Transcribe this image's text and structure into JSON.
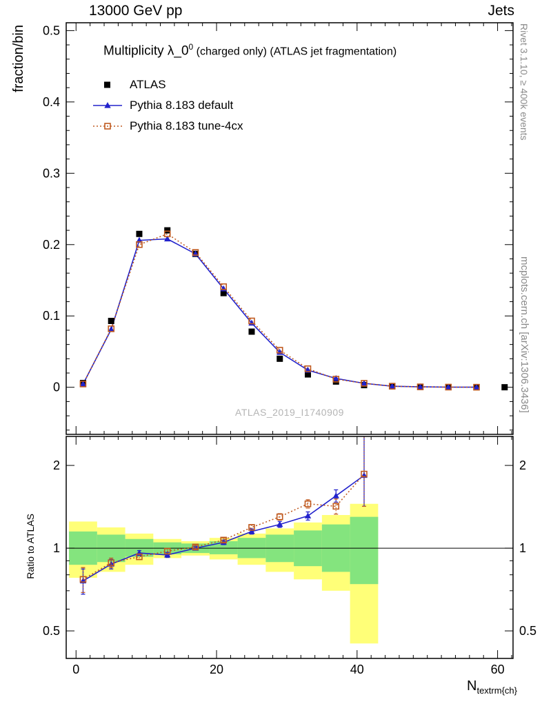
{
  "header": {
    "left": "13000 GeV pp",
    "right": "Jets"
  },
  "side_notes": {
    "top_right": "Rivet 3.1.10, ≥ 400k events",
    "bottom_right": "mcplots.cern.ch [arXiv:1306.3436]"
  },
  "main_panel": {
    "ylabel": "fraction/bin",
    "title": {
      "prefix": "Multiplicity λ_0",
      "superscript": "0",
      "suffix": " (charged only) (ATLAS jet fragmentation)"
    },
    "watermark": "ATLAS_2019_I1740909",
    "legend": [
      {
        "label": "ATLAS",
        "marker": "filled-square",
        "line": "none"
      },
      {
        "label": "Pythia 8.183 default",
        "marker": "filled-triangle",
        "line": "solid"
      },
      {
        "label": "Pythia 8.183 tune-4cx",
        "marker": "open-square",
        "line": "dotted"
      }
    ]
  },
  "ratio_panel": {
    "ylabel": "Ratio to ATLAS"
  },
  "xaxis": {
    "label_base": "N",
    "label_sub": "textrm{ch}"
  },
  "colors": {
    "atlas": "#000000",
    "pythia_default": "#2222cc",
    "pythia_4cx": "#c05a20",
    "band_green": "#84e47e",
    "band_yellow": "#ffff78",
    "watermark": "#b4b4b4",
    "side_note": "#8a8a8a"
  },
  "chart_data": [
    {
      "type": "line",
      "title": "Multiplicity λ_0^0 (charged only) (ATLAS jet fragmentation)",
      "xlabel": "N_textrm{ch}",
      "ylabel": "fraction/bin",
      "legend_position": "top-left",
      "grid": false,
      "xlim": [
        -1.4,
        62.2
      ],
      "ylim": [
        -0.066,
        0.511
      ],
      "xticks": {
        "values": [
          0,
          20,
          40,
          60
        ],
        "labels": [
          "0",
          "20",
          "40",
          "60"
        ]
      },
      "yticks": {
        "values": [
          0,
          0.1,
          0.2,
          0.3,
          0.4,
          0.5
        ],
        "labels": [
          "0",
          "0.1",
          "0.2",
          "0.3",
          "0.4",
          "0.5"
        ]
      },
      "x": [
        1,
        5,
        9,
        13,
        17,
        21,
        25,
        29,
        33,
        37,
        41,
        45,
        49,
        53,
        57,
        61
      ],
      "series": [
        {
          "name": "ATLAS",
          "values": [
            0.006,
            0.093,
            0.215,
            0.22,
            0.187,
            0.132,
            0.078,
            0.04,
            0.018,
            0.008,
            0.003,
            0.0012,
            0.0005,
            0.0002,
            0.0001,
            5e-05
          ]
        },
        {
          "name": "Pythia 8.183 default",
          "values": [
            0.0046,
            0.081,
            0.206,
            0.208,
            0.187,
            0.138,
            0.09,
            0.049,
            0.024,
            0.0124,
            0.0055,
            0.0015,
            0.0006,
            0.00025,
            0.0001,
            null
          ]
        },
        {
          "name": "Pythia 8.183 tune-4cx",
          "values": [
            0.0046,
            0.082,
            0.2,
            0.215,
            0.189,
            0.141,
            0.093,
            0.052,
            0.026,
            0.0114,
            0.0056,
            0.0015,
            0.0006,
            0.00025,
            0.0001,
            null
          ]
        }
      ]
    },
    {
      "type": "line",
      "title": "Ratio to ATLAS",
      "ylabel": "Ratio to ATLAS",
      "yscale": "log",
      "grid": false,
      "xlim": [
        -1.4,
        62.2
      ],
      "ylim": [
        0.397,
        2.55
      ],
      "yticks": {
        "values": [
          0.5,
          1,
          2
        ],
        "labels": [
          "0.5",
          "1",
          "2"
        ]
      },
      "yticks_minor": [
        0.6,
        0.7,
        0.8,
        0.9
      ],
      "reference_line": 1,
      "x": [
        1,
        5,
        9,
        13,
        17,
        21,
        25,
        29,
        33,
        37,
        41
      ],
      "series": [
        {
          "name": "Pythia 8.183 default",
          "values": [
            0.76,
            0.875,
            0.96,
            0.945,
            1.0,
            1.05,
            1.15,
            1.22,
            1.31,
            1.55,
            1.84
          ],
          "err_lo": [
            0.08,
            0.035,
            0.02,
            0.02,
            0.015,
            0.02,
            0.025,
            0.03,
            0.045,
            0.08,
            0.42
          ],
          "err_hi": [
            0.08,
            0.035,
            0.02,
            0.02,
            0.015,
            0.02,
            0.025,
            0.03,
            0.045,
            0.08,
            0.9
          ]
        },
        {
          "name": "Pythia 8.183 tune-4cx",
          "values": [
            0.77,
            0.885,
            0.93,
            0.975,
            1.01,
            1.07,
            1.19,
            1.3,
            1.45,
            1.42,
            1.86
          ],
          "err_lo": [
            0.08,
            0.035,
            0.02,
            0.02,
            0.015,
            0.02,
            0.025,
            0.035,
            0.05,
            0.09,
            0.44
          ],
          "err_hi": [
            0.08,
            0.035,
            0.02,
            0.02,
            0.015,
            0.02,
            0.025,
            0.035,
            0.05,
            0.09,
            0.92
          ]
        }
      ],
      "uncertainty_bands": {
        "bin_edges": [
          -1,
          3,
          7,
          11,
          15,
          19,
          23,
          27,
          31,
          35,
          39,
          43
        ],
        "yellow_lo": [
          0.78,
          0.82,
          0.87,
          0.92,
          0.94,
          0.91,
          0.87,
          0.82,
          0.77,
          0.7,
          0.45
        ],
        "yellow_hi": [
          1.25,
          1.19,
          1.13,
          1.08,
          1.06,
          1.09,
          1.13,
          1.18,
          1.24,
          1.32,
          1.45
        ],
        "green_lo": [
          0.87,
          0.89,
          0.93,
          0.95,
          0.96,
          0.95,
          0.92,
          0.89,
          0.86,
          0.82,
          0.74
        ],
        "green_hi": [
          1.15,
          1.12,
          1.08,
          1.05,
          1.04,
          1.06,
          1.09,
          1.12,
          1.16,
          1.22,
          1.3
        ]
      }
    }
  ]
}
